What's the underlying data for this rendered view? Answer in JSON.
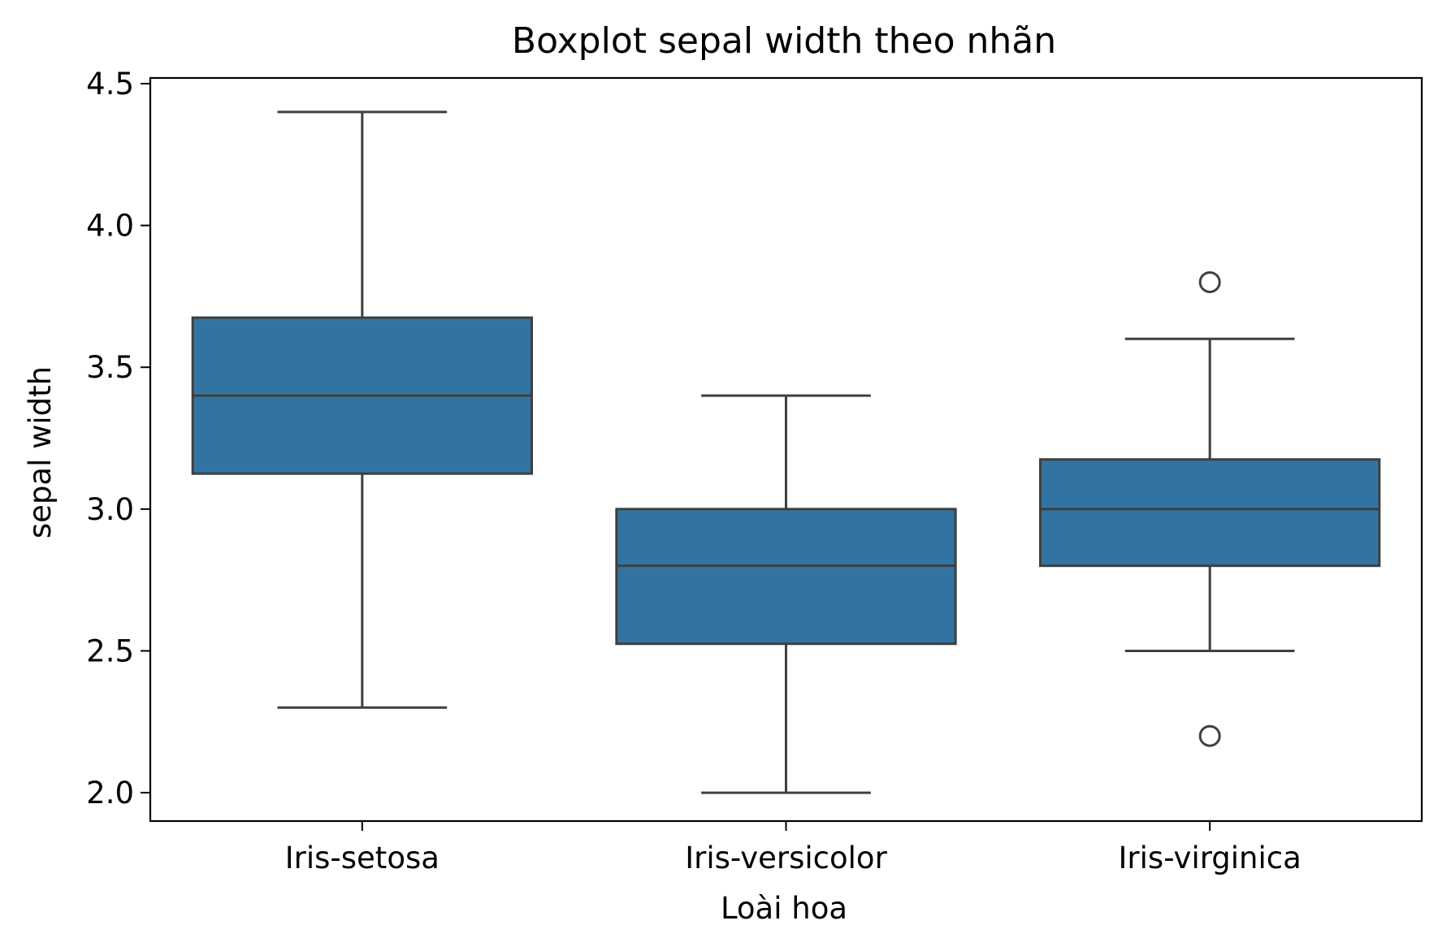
{
  "chart_data": {
    "type": "boxplot",
    "title": "Boxplot sepal width theo nhãn",
    "xlabel": "Loài hoa",
    "ylabel": "sepal width",
    "ylim": [
      1.9,
      4.52
    ],
    "yticks": [
      "2.0",
      "2.5",
      "3.0",
      "3.5",
      "4.0",
      "4.5"
    ],
    "grid": false,
    "legend": "none",
    "colors": {
      "box_fill": "#3274a1",
      "line": "#3f3f3f",
      "text": "#000000",
      "axes": "#000000",
      "background": "#ffffff"
    },
    "categories": [
      "Iris-setosa",
      "Iris-versicolor",
      "Iris-virginica"
    ],
    "boxes": [
      {
        "category": "Iris-setosa",
        "whisker_low": 2.3,
        "q1": 3.125,
        "median": 3.4,
        "q3": 3.675,
        "whisker_high": 4.4,
        "outliers": []
      },
      {
        "category": "Iris-versicolor",
        "whisker_low": 2.0,
        "q1": 2.525,
        "median": 2.8,
        "q3": 3.0,
        "whisker_high": 3.4,
        "outliers": []
      },
      {
        "category": "Iris-virginica",
        "whisker_low": 2.5,
        "q1": 2.8,
        "median": 3.0,
        "q3": 3.175,
        "whisker_high": 3.6,
        "outliers": [
          3.8,
          2.2
        ]
      }
    ]
  }
}
